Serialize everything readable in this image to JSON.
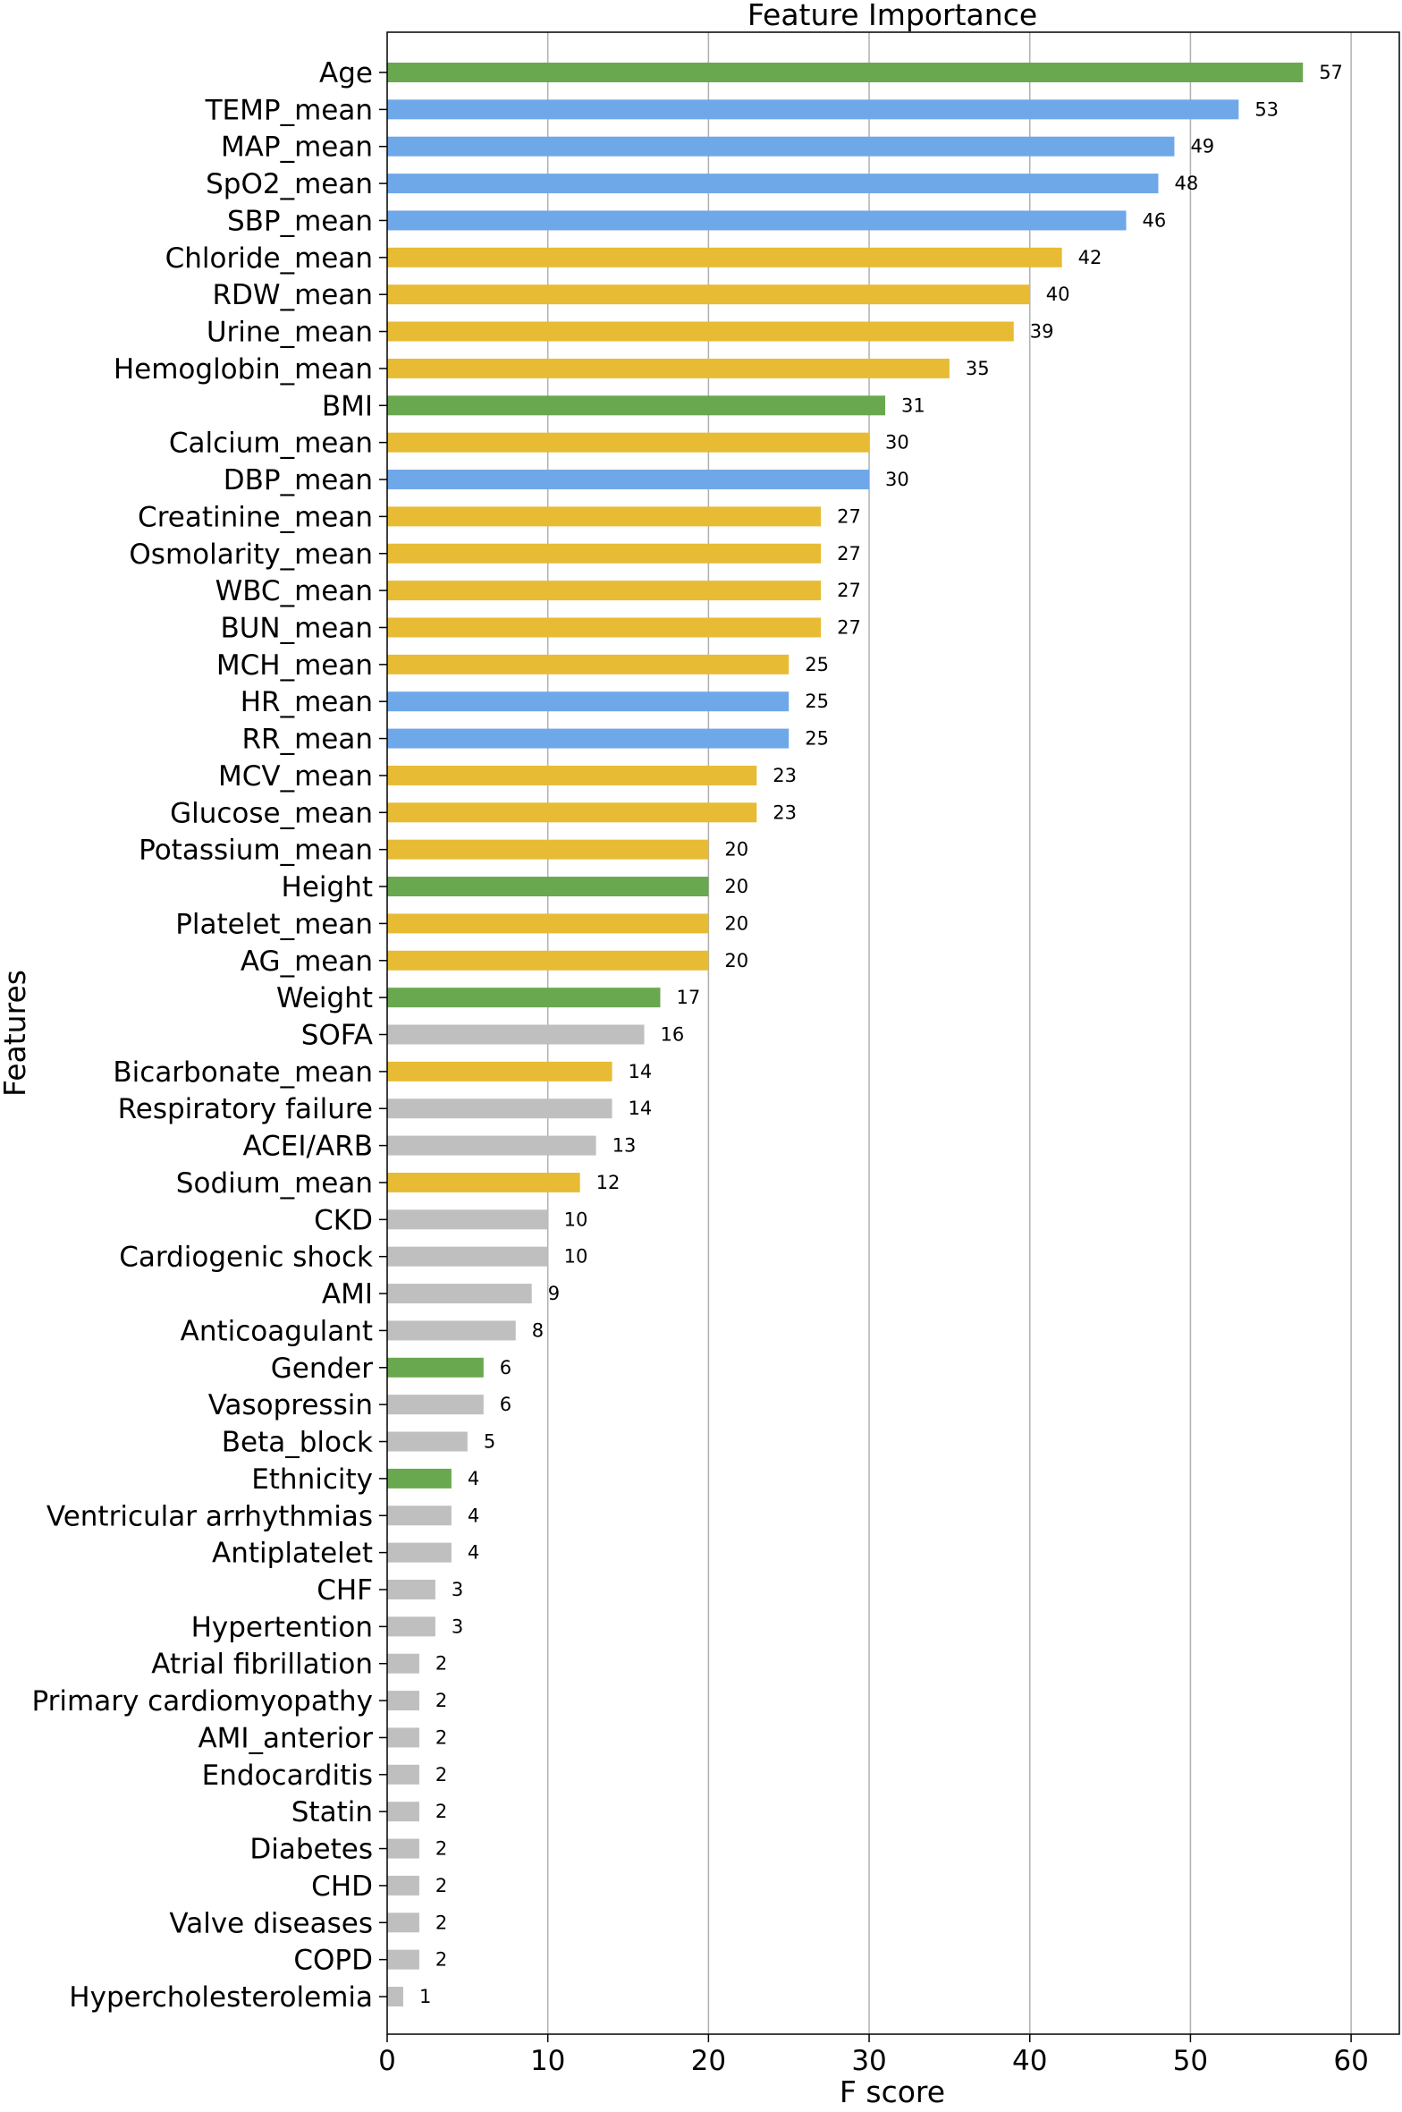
{
  "chart_data": {
    "type": "bar",
    "orientation": "horizontal",
    "title": "Feature Importance",
    "xlabel": "F score",
    "ylabel": "Features",
    "xlim": [
      0,
      63
    ],
    "xticks": [
      0,
      10,
      20,
      30,
      40,
      50,
      60
    ],
    "grid": "vertical",
    "colors": {
      "demographic": "#6aa84f",
      "vital": "#6fa8e8",
      "lab": "#e8bb35",
      "clinical": "#bfbfbf"
    },
    "categories": [
      "Age",
      "TEMP_mean",
      "MAP_mean",
      "SpO2_mean",
      "SBP_mean",
      "Chloride_mean",
      "RDW_mean",
      "Urine_mean",
      "Hemoglobin_mean",
      "BMI",
      "Calcium_mean",
      "DBP_mean",
      "Creatinine_mean",
      "Osmolarity_mean",
      "WBC_mean",
      "BUN_mean",
      "MCH_mean",
      "HR_mean",
      "RR_mean",
      "MCV_mean",
      "Glucose_mean",
      "Potassium_mean",
      "Height",
      "Platelet_mean",
      "AG_mean",
      "Weight",
      "SOFA",
      "Bicarbonate_mean",
      "Respiratory failure",
      "ACEI/ARB",
      "Sodium_mean",
      "CKD",
      "Cardiogenic shock",
      "AMI",
      "Anticoagulant",
      "Gender",
      "Vasopressin",
      "Beta_block",
      "Ethnicity",
      "Ventricular arrhythmias",
      "Antiplatelet",
      "CHF",
      "Hypertention",
      "Atrial fibrillation",
      "Primary cardiomyopathy",
      "AMI_anterior",
      "Endocarditis",
      "Statin",
      "Diabetes",
      "CHD",
      "Valve diseases",
      "COPD",
      "Hypercholesterolemia"
    ],
    "values": [
      57,
      53,
      49,
      48,
      46,
      42,
      40,
      39,
      35,
      31,
      30,
      30,
      27,
      27,
      27,
      27,
      25,
      25,
      25,
      23,
      23,
      20,
      20,
      20,
      20,
      17,
      16,
      14,
      14,
      13,
      12,
      10,
      10,
      9,
      8,
      6,
      6,
      5,
      4,
      4,
      4,
      3,
      3,
      2,
      2,
      2,
      2,
      2,
      2,
      2,
      2,
      2,
      1
    ],
    "groups": [
      "demographic",
      "vital",
      "vital",
      "vital",
      "vital",
      "lab",
      "lab",
      "lab",
      "lab",
      "demographic",
      "lab",
      "vital",
      "lab",
      "lab",
      "lab",
      "lab",
      "lab",
      "vital",
      "vital",
      "lab",
      "lab",
      "lab",
      "demographic",
      "lab",
      "lab",
      "demographic",
      "clinical",
      "lab",
      "clinical",
      "clinical",
      "lab",
      "clinical",
      "clinical",
      "clinical",
      "clinical",
      "demographic",
      "clinical",
      "clinical",
      "demographic",
      "clinical",
      "clinical",
      "clinical",
      "clinical",
      "clinical",
      "clinical",
      "clinical",
      "clinical",
      "clinical",
      "clinical",
      "clinical",
      "clinical",
      "clinical",
      "clinical"
    ]
  }
}
